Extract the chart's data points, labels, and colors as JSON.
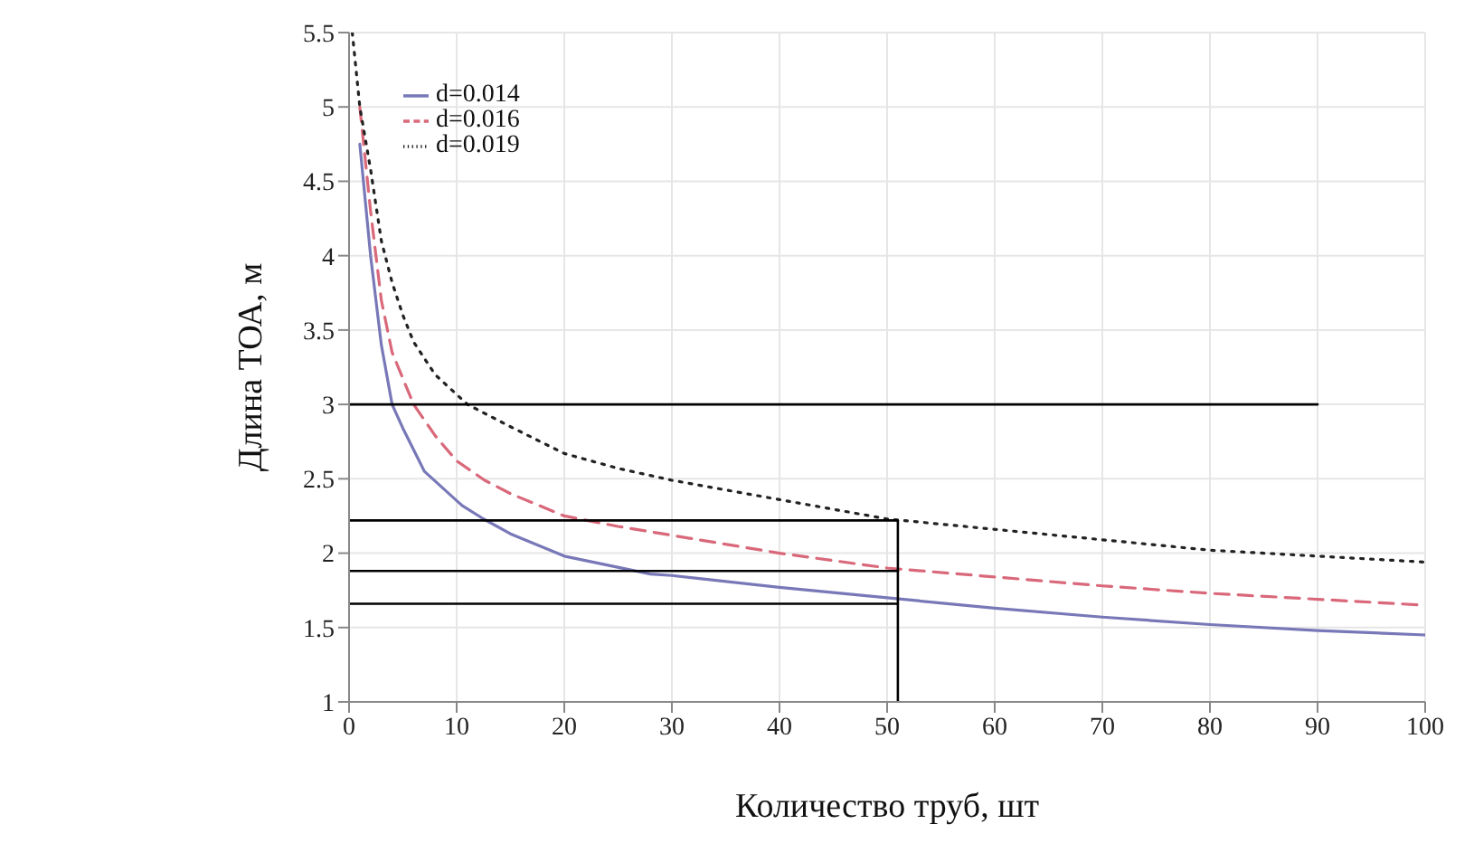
{
  "chart_data": {
    "type": "line",
    "xlabel": "Количество труб, шт",
    "ylabel": "Длина ТОА, м",
    "xlim": [
      0,
      100
    ],
    "xticks": [
      0,
      10,
      20,
      30,
      40,
      50,
      60,
      70,
      80,
      90,
      100
    ],
    "ylim": [
      1,
      5.5
    ],
    "yticks": [
      1,
      1.5,
      2,
      2.5,
      3,
      3.5,
      4,
      4.5,
      5,
      5.5
    ],
    "grid": true,
    "legend": "top left",
    "marker": "none",
    "series": [
      {
        "name": "d=0.014",
        "color": "#7878b8",
        "line_style": "solid",
        "x": [
          1,
          2,
          3,
          4,
          5,
          7,
          10.5,
          12.5,
          15,
          20,
          28,
          30,
          40,
          50,
          60,
          70,
          80,
          90,
          100
        ],
        "values": [
          4.75,
          4.0,
          3.4,
          3.0,
          2.84,
          2.55,
          2.32,
          2.23,
          2.13,
          1.98,
          1.86,
          1.85,
          1.77,
          1.7,
          1.63,
          1.57,
          1.52,
          1.48,
          1.45
        ]
      },
      {
        "name": "d=0.016",
        "color": "#d9687a",
        "line_style": "dashed",
        "x": [
          1,
          2,
          3,
          4,
          6,
          8,
          10,
          12.6,
          15,
          20,
          25,
          30,
          40,
          50,
          60,
          70,
          80,
          90,
          100
        ],
        "values": [
          5.0,
          4.3,
          3.7,
          3.35,
          3.0,
          2.79,
          2.62,
          2.49,
          2.4,
          2.25,
          2.18,
          2.12,
          2.0,
          1.9,
          1.84,
          1.78,
          1.73,
          1.69,
          1.65
        ]
      },
      {
        "name": "d=0.019",
        "color": "#222222",
        "line_style": "dotted",
        "x": [
          0.3,
          1,
          2,
          3,
          4,
          5,
          6,
          8,
          11,
          15,
          20,
          25,
          30,
          40,
          50,
          60,
          70,
          80,
          90,
          100
        ],
        "values": [
          5.5,
          5.0,
          4.58,
          4.1,
          3.82,
          3.6,
          3.42,
          3.2,
          3.0,
          2.85,
          2.67,
          2.57,
          2.49,
          2.36,
          2.23,
          2.16,
          2.09,
          2.02,
          1.98,
          1.94
        ]
      },
      {
        "color": "#000000",
        "line_style": "solid",
        "x": [
          0,
          90
        ],
        "values": [
          3,
          3
        ]
      },
      {
        "color": "#000000",
        "line_style": "solid",
        "x": [
          0,
          51
        ],
        "values": [
          2.22,
          2.22
        ]
      },
      {
        "color": "#000000",
        "line_style": "solid",
        "x": [
          0,
          51
        ],
        "values": [
          1.88,
          1.88
        ]
      },
      {
        "color": "#000000",
        "line_style": "solid",
        "x": [
          0,
          51
        ],
        "values": [
          1.66,
          1.66
        ]
      },
      {
        "color": "#000000",
        "line_style": "solid",
        "x": [
          51,
          51
        ],
        "values": [
          1,
          2.22
        ]
      }
    ]
  }
}
